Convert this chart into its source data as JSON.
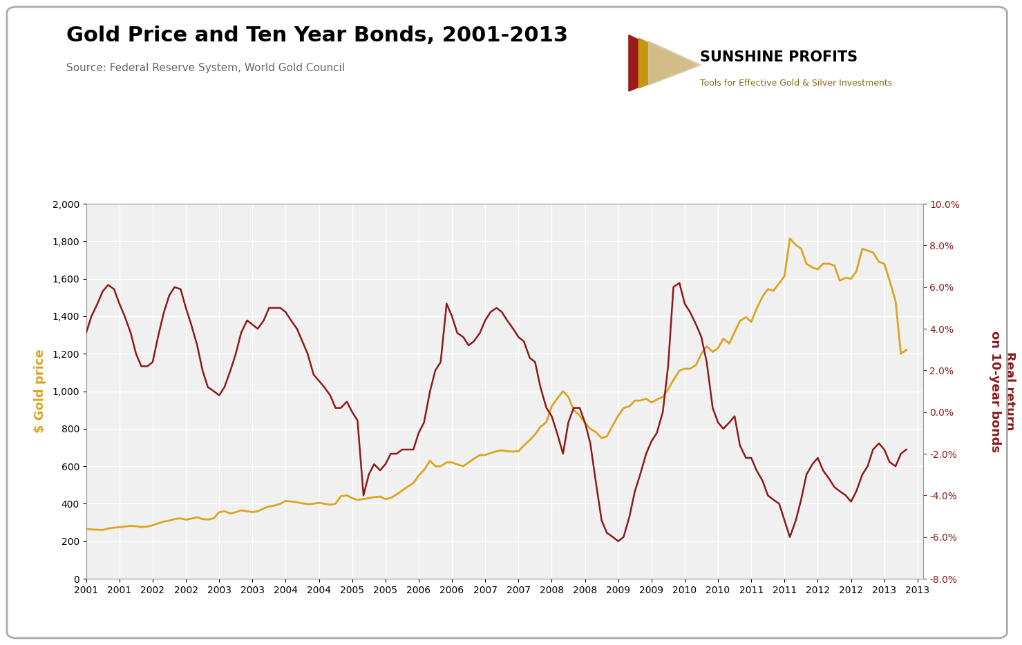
{
  "title": "Gold Price and Ten Year Bonds, 2001-2013",
  "source": "Source: Federal Reserve System, World Gold Council",
  "ylabel_left": "$ Gold price",
  "ylabel_right": "Real return\non 10-year bonds",
  "ylim_left": [
    0,
    2000
  ],
  "ylim_right": [
    -0.08,
    0.1
  ],
  "yticks_left": [
    0,
    200,
    400,
    600,
    800,
    1000,
    1200,
    1400,
    1600,
    1800,
    2000
  ],
  "yticks_right": [
    -0.08,
    -0.06,
    -0.04,
    -0.02,
    0.0,
    0.02,
    0.04,
    0.06,
    0.08,
    0.1
  ],
  "gold_color": "#DAA520",
  "bonds_color": "#8B1A1A",
  "background_color": "#F0F0F0",
  "title_fontsize": 22,
  "source_fontsize": 11,
  "gold_data": {
    "x": [
      2001.0,
      2001.08,
      2001.17,
      2001.25,
      2001.33,
      2001.42,
      2001.5,
      2001.58,
      2001.67,
      2001.75,
      2001.83,
      2001.92,
      2002.0,
      2002.08,
      2002.17,
      2002.25,
      2002.33,
      2002.42,
      2002.5,
      2002.58,
      2002.67,
      2002.75,
      2002.83,
      2002.92,
      2003.0,
      2003.08,
      2003.17,
      2003.25,
      2003.33,
      2003.42,
      2003.5,
      2003.58,
      2003.67,
      2003.75,
      2003.83,
      2003.92,
      2004.0,
      2004.08,
      2004.17,
      2004.25,
      2004.33,
      2004.42,
      2004.5,
      2004.58,
      2004.67,
      2004.75,
      2004.83,
      2004.92,
      2005.0,
      2005.08,
      2005.17,
      2005.25,
      2005.33,
      2005.42,
      2005.5,
      2005.58,
      2005.67,
      2005.75,
      2005.83,
      2005.92,
      2006.0,
      2006.08,
      2006.17,
      2006.25,
      2006.33,
      2006.42,
      2006.5,
      2006.58,
      2006.67,
      2006.75,
      2006.83,
      2006.92,
      2007.0,
      2007.08,
      2007.17,
      2007.25,
      2007.33,
      2007.42,
      2007.5,
      2007.58,
      2007.67,
      2007.75,
      2007.83,
      2007.92,
      2008.0,
      2008.08,
      2008.17,
      2008.25,
      2008.33,
      2008.42,
      2008.5,
      2008.58,
      2008.67,
      2008.75,
      2008.83,
      2008.92,
      2009.0,
      2009.08,
      2009.17,
      2009.25,
      2009.33,
      2009.42,
      2009.5,
      2009.58,
      2009.67,
      2009.75,
      2009.83,
      2009.92,
      2010.0,
      2010.08,
      2010.17,
      2010.25,
      2010.33,
      2010.42,
      2010.5,
      2010.58,
      2010.67,
      2010.75,
      2010.83,
      2010.92,
      2011.0,
      2011.08,
      2011.17,
      2011.25,
      2011.33,
      2011.42,
      2011.5,
      2011.58,
      2011.67,
      2011.75,
      2011.83,
      2011.92,
      2012.0,
      2012.08,
      2012.17,
      2012.25,
      2012.33,
      2012.42,
      2012.5,
      2012.58,
      2012.67,
      2012.75,
      2012.83,
      2012.92,
      2013.0,
      2013.08,
      2013.17,
      2013.25,
      2013.33
    ],
    "y": [
      265,
      263,
      261,
      260,
      268,
      272,
      275,
      278,
      282,
      280,
      276,
      278,
      285,
      295,
      305,
      310,
      318,
      322,
      315,
      320,
      328,
      318,
      316,
      322,
      355,
      360,
      348,
      355,
      365,
      360,
      355,
      360,
      375,
      385,
      390,
      400,
      415,
      412,
      408,
      402,
      398,
      400,
      405,
      400,
      395,
      400,
      440,
      445,
      430,
      420,
      425,
      430,
      435,
      438,
      425,
      430,
      450,
      470,
      490,
      510,
      550,
      580,
      630,
      600,
      600,
      620,
      620,
      610,
      600,
      620,
      640,
      660,
      660,
      670,
      680,
      685,
      680,
      678,
      680,
      710,
      740,
      770,
      810,
      835,
      920,
      960,
      1000,
      970,
      900,
      870,
      830,
      800,
      780,
      750,
      760,
      820,
      870,
      910,
      920,
      950,
      950,
      960,
      940,
      955,
      970,
      1010,
      1060,
      1110,
      1120,
      1120,
      1140,
      1200,
      1240,
      1210,
      1230,
      1280,
      1255,
      1315,
      1375,
      1395,
      1370,
      1440,
      1505,
      1545,
      1535,
      1575,
      1615,
      1815,
      1780,
      1760,
      1680,
      1660,
      1650,
      1680,
      1680,
      1670,
      1590,
      1605,
      1600,
      1640,
      1760,
      1750,
      1740,
      1690,
      1680,
      1590,
      1480,
      1200,
      1220
    ]
  },
  "bonds_data": {
    "x": [
      2001.0,
      2001.08,
      2001.17,
      2001.25,
      2001.33,
      2001.42,
      2001.5,
      2001.58,
      2001.67,
      2001.75,
      2001.83,
      2001.92,
      2002.0,
      2002.08,
      2002.17,
      2002.25,
      2002.33,
      2002.42,
      2002.5,
      2002.58,
      2002.67,
      2002.75,
      2002.83,
      2002.92,
      2003.0,
      2003.08,
      2003.17,
      2003.25,
      2003.33,
      2003.42,
      2003.5,
      2003.58,
      2003.67,
      2003.75,
      2003.83,
      2003.92,
      2004.0,
      2004.08,
      2004.17,
      2004.25,
      2004.33,
      2004.42,
      2004.5,
      2004.58,
      2004.67,
      2004.75,
      2004.83,
      2004.92,
      2005.0,
      2005.08,
      2005.17,
      2005.25,
      2005.33,
      2005.42,
      2005.5,
      2005.58,
      2005.67,
      2005.75,
      2005.83,
      2005.92,
      2006.0,
      2006.08,
      2006.17,
      2006.25,
      2006.33,
      2006.42,
      2006.5,
      2006.58,
      2006.67,
      2006.75,
      2006.83,
      2006.92,
      2007.0,
      2007.08,
      2007.17,
      2007.25,
      2007.33,
      2007.42,
      2007.5,
      2007.58,
      2007.67,
      2007.75,
      2007.83,
      2007.92,
      2008.0,
      2008.08,
      2008.17,
      2008.25,
      2008.33,
      2008.42,
      2008.5,
      2008.58,
      2008.67,
      2008.75,
      2008.83,
      2008.92,
      2009.0,
      2009.08,
      2009.17,
      2009.25,
      2009.33,
      2009.42,
      2009.5,
      2009.58,
      2009.67,
      2009.75,
      2009.83,
      2009.92,
      2010.0,
      2010.08,
      2010.17,
      2010.25,
      2010.33,
      2010.42,
      2010.5,
      2010.58,
      2010.67,
      2010.75,
      2010.83,
      2010.92,
      2011.0,
      2011.08,
      2011.17,
      2011.25,
      2011.33,
      2011.42,
      2011.5,
      2011.58,
      2011.67,
      2011.75,
      2011.83,
      2011.92,
      2012.0,
      2012.08,
      2012.17,
      2012.25,
      2012.33,
      2012.42,
      2012.5,
      2012.58,
      2012.67,
      2012.75,
      2012.83,
      2012.92,
      2013.0,
      2013.08,
      2013.17,
      2013.25,
      2013.33
    ],
    "y": [
      0.038,
      0.046,
      0.052,
      0.058,
      0.061,
      0.059,
      0.052,
      0.046,
      0.038,
      0.028,
      0.022,
      0.022,
      0.024,
      0.036,
      0.048,
      0.056,
      0.06,
      0.059,
      0.05,
      0.042,
      0.032,
      0.02,
      0.012,
      0.01,
      0.008,
      0.012,
      0.02,
      0.028,
      0.038,
      0.044,
      0.042,
      0.04,
      0.044,
      0.05,
      0.05,
      0.05,
      0.048,
      0.044,
      0.04,
      0.034,
      0.028,
      0.018,
      0.015,
      0.012,
      0.008,
      0.002,
      0.002,
      0.005,
      0.0,
      -0.004,
      -0.04,
      -0.03,
      -0.025,
      -0.028,
      -0.025,
      -0.02,
      -0.02,
      -0.018,
      -0.018,
      -0.018,
      -0.01,
      -0.005,
      0.01,
      0.02,
      0.024,
      0.052,
      0.046,
      0.038,
      0.036,
      0.032,
      0.034,
      0.038,
      0.044,
      0.048,
      0.05,
      0.048,
      0.044,
      0.04,
      0.036,
      0.034,
      0.026,
      0.024,
      0.012,
      0.002,
      -0.002,
      -0.01,
      -0.02,
      -0.005,
      0.002,
      0.002,
      -0.005,
      -0.015,
      -0.035,
      -0.052,
      -0.058,
      -0.06,
      -0.062,
      -0.06,
      -0.05,
      -0.038,
      -0.03,
      -0.02,
      -0.014,
      -0.01,
      0.0,
      0.022,
      0.06,
      0.062,
      0.052,
      0.048,
      0.042,
      0.036,
      0.024,
      0.002,
      -0.005,
      -0.008,
      -0.005,
      -0.002,
      -0.016,
      -0.022,
      -0.022,
      -0.028,
      -0.033,
      -0.04,
      -0.042,
      -0.044,
      -0.052,
      -0.06,
      -0.052,
      -0.042,
      -0.03,
      -0.025,
      -0.022,
      -0.028,
      -0.032,
      -0.036,
      -0.038,
      -0.04,
      -0.043,
      -0.038,
      -0.03,
      -0.026,
      -0.018,
      -0.015,
      -0.018,
      -0.024,
      -0.026,
      -0.02,
      -0.018
    ]
  },
  "xtick_labels": [
    "2001",
    "2001",
    "2002",
    "2002",
    "2003",
    "2003",
    "2004",
    "2004",
    "2005",
    "2005",
    "2006",
    "2006",
    "2007",
    "2007",
    "2008",
    "2008",
    "2009",
    "2009",
    "2010",
    "2010",
    "2011",
    "2011",
    "2012",
    "2012",
    "2013",
    "2013"
  ],
  "xtick_positions": [
    2001.0,
    2001.5,
    2002.0,
    2002.5,
    2003.0,
    2003.5,
    2004.0,
    2004.5,
    2005.0,
    2005.5,
    2006.0,
    2006.5,
    2007.0,
    2007.5,
    2008.0,
    2008.5,
    2009.0,
    2009.5,
    2010.0,
    2010.5,
    2011.0,
    2011.5,
    2012.0,
    2012.5,
    2013.0,
    2013.5
  ],
  "xlim": [
    2001.0,
    2013.58
  ]
}
